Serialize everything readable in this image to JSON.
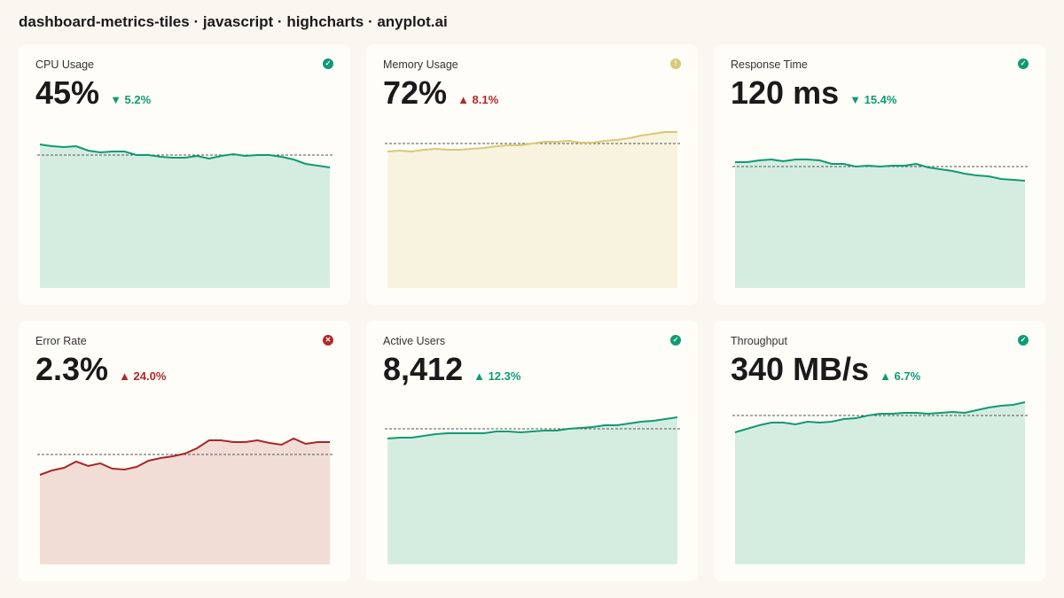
{
  "title": "dashboard-metrics-tiles · javascript · highcharts · anyplot.ai",
  "chart_data": [
    {
      "type": "area",
      "title": "CPU Usage",
      "value": "45%",
      "change": "▼ 5.2%",
      "change_color": "#0f9a74",
      "status_icon": "✓",
      "status_color": "#0f9a74",
      "color": "#0f9a74",
      "fill": "#d5ede0",
      "values": [
        162,
        160,
        159,
        160,
        155,
        153,
        154,
        154,
        150,
        150,
        148,
        147,
        147,
        149,
        146,
        149,
        151,
        149,
        150,
        150,
        148,
        145,
        140,
        138,
        136
      ],
      "threshold": 150,
      "ylim": [
        0,
        195
      ]
    },
    {
      "type": "area",
      "title": "Memory Usage",
      "value": "72%",
      "change": "▲ 8.1%",
      "change_color": "#b0282c",
      "status_icon": "!",
      "status_color": "#d9c877",
      "color": "#d9c877",
      "fill": "#f8f3df",
      "values": [
        154,
        155,
        154,
        156,
        157,
        156,
        156,
        157,
        158,
        160,
        161,
        161,
        163,
        165,
        165,
        166,
        164,
        164,
        166,
        167,
        169,
        172,
        174,
        176,
        176
      ],
      "threshold": 163,
      "ylim": [
        0,
        195
      ]
    },
    {
      "type": "area",
      "title": "Response Time",
      "value": "120 ms",
      "change": "▼ 15.4%",
      "change_color": "#0f9a74",
      "status_icon": "✓",
      "status_color": "#0f9a74",
      "color": "#0f9a74",
      "fill": "#d5ede0",
      "values": [
        142,
        142,
        144,
        145,
        143,
        145,
        145,
        144,
        140,
        140,
        137,
        138,
        137,
        138,
        138,
        140,
        136,
        134,
        132,
        129,
        127,
        126,
        123,
        122,
        121
      ],
      "threshold": 137,
      "ylim": [
        0,
        195
      ]
    },
    {
      "type": "area",
      "title": "Error Rate",
      "value": "2.3%",
      "change": "▲ 24.0%",
      "change_color": "#b0282c",
      "status_icon": "✕",
      "status_color": "#b0282c",
      "color": "#a8262a",
      "fill": "#f1ddd6",
      "values": [
        101,
        106,
        109,
        116,
        111,
        114,
        108,
        107,
        110,
        117,
        120,
        122,
        125,
        131,
        140,
        140,
        138,
        138,
        140,
        137,
        135,
        142,
        136,
        138,
        138
      ],
      "threshold": 124,
      "ylim": [
        0,
        195
      ]
    },
    {
      "type": "area",
      "title": "Active Users",
      "value": "8,412",
      "change": "▲ 12.3%",
      "change_color": "#0f9a74",
      "status_icon": "✓",
      "status_color": "#0f9a74",
      "color": "#0f9a74",
      "fill": "#d5ede0",
      "values": [
        142,
        143,
        143,
        145,
        147,
        148,
        148,
        148,
        148,
        150,
        150,
        149,
        150,
        151,
        151,
        153,
        154,
        155,
        157,
        157,
        159,
        161,
        162,
        164,
        166
      ],
      "threshold": 153,
      "ylim": [
        0,
        195
      ]
    },
    {
      "type": "area",
      "title": "Throughput",
      "value": "340 MB/s",
      "change": "▲ 6.7%",
      "change_color": "#0f9a74",
      "status_icon": "✓",
      "status_color": "#0f9a74",
      "color": "#0f9a74",
      "fill": "#d5ede0",
      "values": [
        149,
        153,
        157,
        160,
        160,
        158,
        161,
        160,
        161,
        164,
        165,
        168,
        170,
        170,
        171,
        171,
        170,
        171,
        172,
        171,
        174,
        177,
        179,
        180,
        183
      ],
      "threshold": 168,
      "ylim": [
        0,
        195
      ]
    }
  ]
}
